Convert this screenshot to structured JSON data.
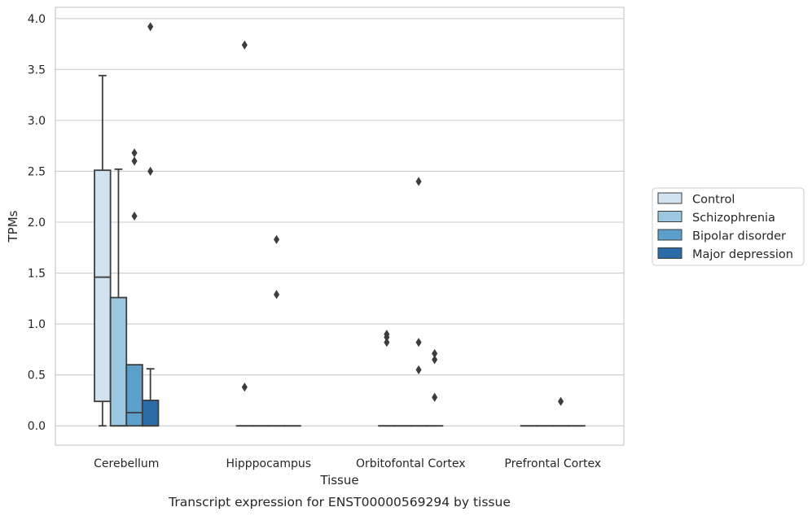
{
  "chart_data": {
    "type": "box",
    "xlabel": "Tissue",
    "ylabel": "TPMs",
    "caption": "Transcript expression for ENST00000569294 by tissue",
    "ylim": [
      -0.19,
      4.11
    ],
    "yticks": [
      "0.0",
      "0.5",
      "1.0",
      "1.5",
      "2.0",
      "2.5",
      "3.0",
      "3.5",
      "4.0"
    ],
    "grid": true,
    "legend_position": "right",
    "categories": [
      "Cerebellum",
      "Hipppocampus",
      "Orbitofontal Cortex",
      "Prefrontal Cortex"
    ],
    "series": [
      {
        "name": "Control",
        "color": "#d1e2f1",
        "boxes": [
          {
            "q1": 0.24,
            "median": 1.46,
            "q3": 2.51,
            "whisker_low": 0.0,
            "whisker_high": 3.44,
            "outliers": []
          },
          {
            "q1": 0.0,
            "median": 0.0,
            "q3": 0.0,
            "whisker_low": 0.0,
            "whisker_high": 0.0,
            "outliers": [
              0.38,
              3.74
            ]
          },
          {
            "q1": 0.0,
            "median": 0.0,
            "q3": 0.0,
            "whisker_low": 0.0,
            "whisker_high": 0.0,
            "outliers": [
              0.82,
              0.87,
              0.9
            ]
          },
          {
            "q1": 0.0,
            "median": 0.0,
            "q3": 0.0,
            "whisker_low": 0.0,
            "whisker_high": 0.0,
            "outliers": []
          }
        ]
      },
      {
        "name": "Schizophrenia",
        "color": "#9ac8e0",
        "boxes": [
          {
            "q1": 0.0,
            "median": 0.0,
            "q3": 1.26,
            "whisker_low": 0.0,
            "whisker_high": 2.52,
            "outliers": []
          },
          {
            "q1": 0.0,
            "median": 0.0,
            "q3": 0.0,
            "whisker_low": 0.0,
            "whisker_high": 0.0,
            "outliers": []
          },
          {
            "q1": 0.0,
            "median": 0.0,
            "q3": 0.0,
            "whisker_low": 0.0,
            "whisker_high": 0.0,
            "outliers": []
          },
          {
            "q1": 0.0,
            "median": 0.0,
            "q3": 0.0,
            "whisker_low": 0.0,
            "whisker_high": 0.0,
            "outliers": []
          }
        ]
      },
      {
        "name": "Bipolar disorder",
        "color": "#5b9fca",
        "boxes": [
          {
            "q1": 0.0,
            "median": 0.13,
            "q3": 0.6,
            "whisker_low": 0.0,
            "whisker_high": 0.6,
            "outliers": [
              2.06,
              2.6,
              2.68
            ]
          },
          {
            "q1": 0.0,
            "median": 0.0,
            "q3": 0.0,
            "whisker_low": 0.0,
            "whisker_high": 0.0,
            "outliers": [
              1.29,
              1.83
            ]
          },
          {
            "q1": 0.0,
            "median": 0.0,
            "q3": 0.0,
            "whisker_low": 0.0,
            "whisker_high": 0.0,
            "outliers": [
              0.55,
              0.82,
              2.4
            ]
          },
          {
            "q1": 0.0,
            "median": 0.0,
            "q3": 0.0,
            "whisker_low": 0.0,
            "whisker_high": 0.0,
            "outliers": [
              0.24
            ]
          }
        ]
      },
      {
        "name": "Major depression",
        "color": "#2a6ba8",
        "boxes": [
          {
            "q1": 0.0,
            "median": 0.0,
            "q3": 0.25,
            "whisker_low": 0.0,
            "whisker_high": 0.56,
            "outliers": [
              2.5,
              3.92
            ]
          },
          {
            "q1": 0.0,
            "median": 0.0,
            "q3": 0.0,
            "whisker_low": 0.0,
            "whisker_high": 0.0,
            "outliers": []
          },
          {
            "q1": 0.0,
            "median": 0.0,
            "q3": 0.0,
            "whisker_low": 0.0,
            "whisker_high": 0.0,
            "outliers": [
              0.28,
              0.65,
              0.71
            ]
          },
          {
            "q1": 0.0,
            "median": 0.0,
            "q3": 0.0,
            "whisker_low": 0.0,
            "whisker_high": 0.0,
            "outliers": []
          }
        ]
      }
    ],
    "colors": {
      "grid": "#cccccc",
      "frame": "#cccccc",
      "box_edge": "#3d3d3d",
      "outlier": "#3d3d3d"
    }
  }
}
